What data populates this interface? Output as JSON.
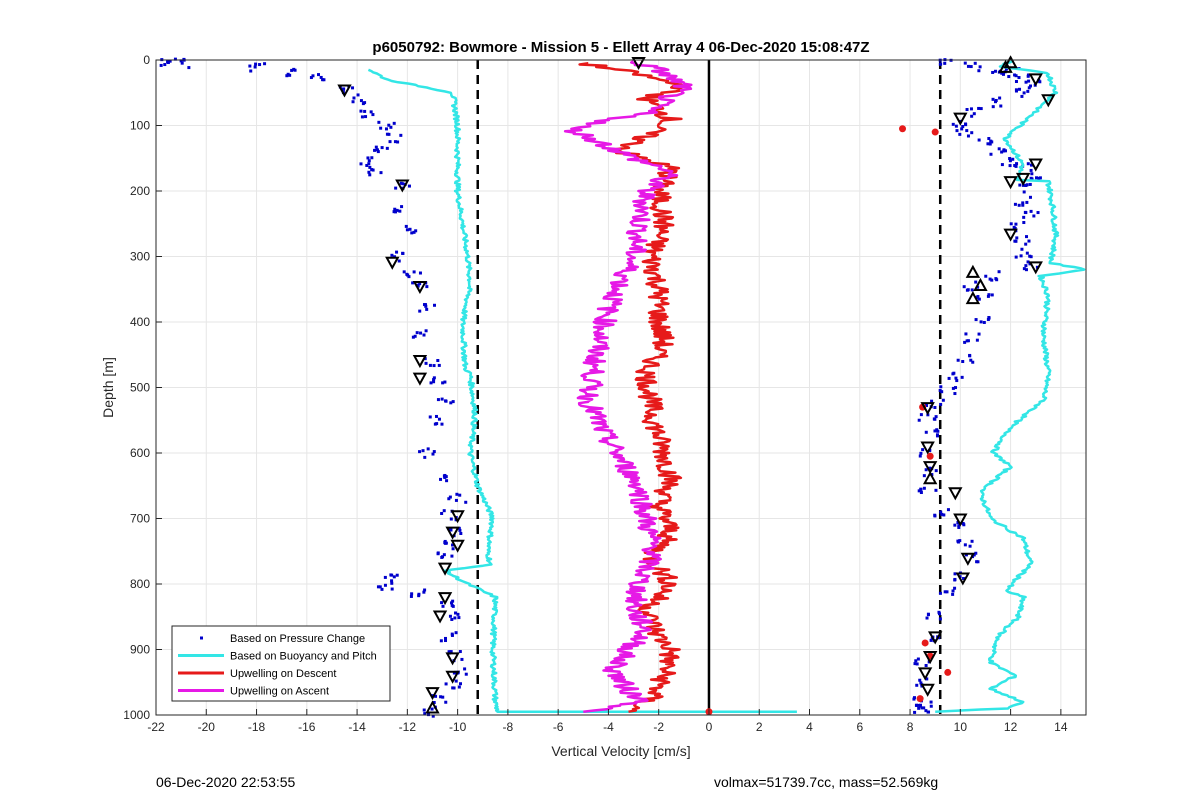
{
  "chart_data": {
    "type": "scatter",
    "title": "p6050792: Bowmore - Mission 5 - Ellett Array 4 06-Dec-2020 15:08:47Z",
    "xlabel": "Vertical Velocity [cm/s]",
    "ylabel": "Depth [m]",
    "xlim": [
      -22,
      15
    ],
    "ylim": [
      0,
      1000
    ],
    "y_reversed": true,
    "grid": true,
    "xticks": [
      "-22",
      "-20",
      "-18",
      "-16",
      "-14",
      "-12",
      "-10",
      "-8",
      "-6",
      "-4",
      "-2",
      "0",
      "2",
      "4",
      "6",
      "8",
      "10",
      "12",
      "14"
    ],
    "yticks": [
      "0",
      "100",
      "200",
      "300",
      "400",
      "500",
      "600",
      "700",
      "800",
      "900",
      "1000"
    ],
    "legend_position": "bottom-left",
    "colors": {
      "pressure": "#0000cc",
      "buoyancy": "#33e6e6",
      "descent": "#e61a1a",
      "ascent": "#e619e6",
      "zero_line": "#000000",
      "threshold": "#000000"
    },
    "vertical_lines": [
      {
        "x": 0,
        "style": "solid"
      },
      {
        "x": -9.2,
        "style": "dashed"
      },
      {
        "x": 9.2,
        "style": "dashed"
      }
    ],
    "series": [
      {
        "name": "Based on Pressure Change",
        "style": "points",
        "segments": [
          {
            "x": [
              -21.5,
              -21,
              -18,
              -16.5,
              -15.5,
              -14.5,
              -14,
              -13.5,
              -12.8,
              -12.5,
              -13,
              -13.5,
              -13.2,
              -12.2,
              -12.5,
              -12,
              -12.3,
              -11.8,
              -11.5,
              -11.2,
              -11.5,
              -11,
              -10.8,
              -10.5,
              -10.8,
              -11.2,
              -10.5,
              -10,
              -10.3,
              -10,
              -10.2,
              -10.5,
              -12.6,
              -12.8,
              -11.5,
              -10.5,
              -10,
              -10.3,
              -10,
              -9.8,
              -10.2,
              -10.8,
              -11.2
            ],
            "y": [
              3,
              5,
              10,
              18,
              28,
              45,
              60,
              80,
              100,
              120,
              140,
              155,
              170,
              190,
              225,
              260,
              300,
              325,
              345,
              380,
              420,
              460,
              490,
              520,
              550,
              600,
              640,
              670,
              695,
              720,
              740,
              755,
              790,
              805,
              815,
              830,
              850,
              880,
              910,
              935,
              955,
              975,
              995
            ]
          },
          {
            "x": [
              8.5,
              8.5,
              9.5,
              10.5,
              11.5,
              12,
              12.5,
              13,
              12.5,
              11.5,
              10.5,
              10,
              10.2,
              11,
              11.5,
              12,
              12.5,
              13,
              12.7,
              12.5,
              12.8,
              12.2,
              12.5,
              12.5,
              12.8,
              11.2,
              10.5,
              11,
              10.8,
              10.5,
              10.2,
              9.8,
              9.5,
              9,
              8.7,
              8.9,
              8.5,
              8.8,
              8.7,
              9.2,
              9.8,
              10.2,
              10.5,
              9.8,
              9.5,
              9,
              8.8,
              8.5,
              8.6,
              8.5
            ],
            "y": [
              992,
              990,
              5,
              10,
              15,
              20,
              28,
              38,
              50,
              65,
              80,
              95,
              110,
              125,
              140,
              155,
              165,
              180,
              195,
              215,
              235,
              255,
              275,
              295,
              315,
              330,
              345,
              365,
              395,
              425,
              455,
              485,
              505,
              525,
              545,
              570,
              600,
              630,
              660,
              690,
              710,
              740,
              760,
              790,
              810,
              850,
              880,
              920,
              950,
              980
            ]
          }
        ]
      },
      {
        "name": "Based on Buoyancy and Pitch",
        "style": "line",
        "segments": [
          {
            "x": [
              -13.5,
              -12.8,
              -10.2,
              -10,
              -10,
              -9.6,
              -9.5,
              -9.8,
              -9.7,
              -9.5,
              -9.3,
              -9.5,
              -9.2,
              -8.6,
              -8.8,
              -8.7,
              -10.5,
              -9.6,
              -8.5,
              -8.6,
              -8.5,
              -8.4,
              3.5
            ],
            "y": [
              15,
              30,
              50,
              100,
              200,
              300,
              340,
              400,
              470,
              480,
              540,
              600,
              650,
              700,
              750,
              770,
              780,
              800,
              820,
              900,
              980,
              995,
              995
            ]
          },
          {
            "x": [
              12,
              11.5,
              13.5,
              13.8,
              11.8,
              12.5,
              12.2,
              13.5,
              13.7,
              13.8,
              13.6,
              15,
              13.2,
              13.5,
              13.3,
              13.5,
              13.3,
              12,
              11.3,
              12,
              10.8,
              11.2,
              12.5,
              12.8,
              11.8,
              12.5,
              12.3,
              11.5,
              11.2,
              12.2,
              11.2,
              12.5,
              11.8,
              9
            ],
            "y": [
              2,
              10,
              20,
              50,
              120,
              160,
              183,
              185,
              230,
              270,
              310,
              320,
              330,
              360,
              420,
              480,
              520,
              560,
              600,
              620,
              660,
              700,
              730,
              770,
              810,
              820,
              850,
              880,
              920,
              940,
              960,
              980,
              990,
              995
            ]
          }
        ]
      },
      {
        "name": "Upwelling on Descent",
        "style": "line",
        "segments": [
          {
            "x": [
              -5,
              -3,
              -1,
              -2.5,
              -1.5,
              -3.5,
              -1.5,
              -2,
              -1.8,
              -2.3,
              -2,
              -2,
              -1.8,
              -2.5,
              -2.2,
              -1.8,
              -1.5,
              -2,
              -1.5,
              -2.3,
              -1.5,
              -2.5,
              -2,
              -1.5,
              -1.8,
              -2.2,
              -3.2
            ],
            "y": [
              5,
              20,
              40,
              60,
              90,
              140,
              165,
              200,
              250,
              300,
              350,
              400,
              430,
              480,
              550,
              600,
              640,
              680,
              720,
              760,
              800,
              840,
              880,
              900,
              940,
              970,
              995
            ]
          }
        ]
      },
      {
        "name": "Upwelling on Ascent",
        "style": "line",
        "segments": [
          {
            "x": [
              -3,
              -2,
              -1,
              -2.5,
              -5.5,
              -3,
              -1.5,
              -2.5,
              -3,
              -4,
              -4.5,
              -4.8,
              -4.2,
              -3.5,
              -2.8,
              -2.5,
              -2.2,
              -2.8,
              -3,
              -2.5,
              -3.2,
              -3.8,
              -3.5,
              -3,
              -2.5,
              -5
            ],
            "y": [
              2,
              15,
              40,
              80,
              105,
              150,
              170,
              200,
              300,
              380,
              450,
              520,
              570,
              610,
              650,
              700,
              750,
              800,
              840,
              870,
              900,
              930,
              950,
              970,
              980,
              995
            ]
          }
        ]
      }
    ],
    "markers": {
      "up_triangles": {
        "x": [
          12,
          11.8,
          10.5,
          10.8,
          10.5,
          8.8,
          -11
        ],
        "y": [
          5,
          12,
          325,
          345,
          365,
          640,
          990
        ]
      },
      "down_triangles": {
        "x": [
          -2.8,
          13,
          13.5,
          10,
          13,
          12.5,
          12,
          12,
          13,
          -14.5,
          -12.2,
          -12.6,
          -11.5,
          -11.5,
          -11.5,
          -10,
          -10.2,
          -10,
          -10.5,
          -10.5,
          -10.7,
          -10.2,
          -10.2,
          -11,
          9.8,
          10,
          10.3,
          10.1,
          8.7,
          8.7,
          8.8,
          9,
          8.8,
          8.6,
          8.7
        ],
        "y": [
          3,
          28,
          60,
          88,
          158,
          180,
          185,
          265,
          315,
          45,
          190,
          308,
          345,
          458,
          485,
          695,
          720,
          740,
          775,
          820,
          848,
          912,
          940,
          965,
          660,
          700,
          760,
          790,
          530,
          590,
          620,
          880,
          910,
          935,
          960
        ]
      },
      "red_dots": {
        "x": [
          7.7,
          9,
          8.5,
          8.8,
          8.6,
          8.8,
          9.5,
          8.4,
          0
        ],
        "y": [
          105,
          110,
          530,
          605,
          890,
          910,
          935,
          975,
          995
        ]
      }
    }
  },
  "footer": {
    "timestamp": "06-Dec-2020 22:53:55",
    "vol_info": "volmax=51739.7cc, mass=52.569kg"
  }
}
